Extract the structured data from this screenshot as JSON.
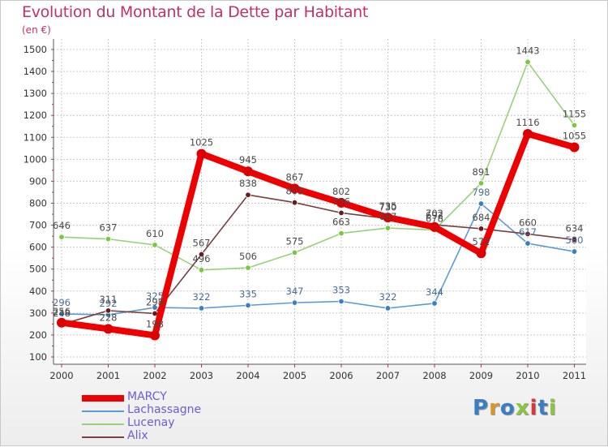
{
  "title": "Evolution du Montant de la Dette par Habitant",
  "subtitle": "(en €)",
  "logo": {
    "text": "Proxiti",
    "colors": [
      "#3a7fc4",
      "#d9962a",
      "#3a7fc4",
      "#8cc63f",
      "#d33a3a",
      "#3a7fc4",
      "#8cc63f"
    ]
  },
  "chart_data": {
    "type": "line",
    "categories": [
      "2000",
      "2001",
      "2002",
      "2003",
      "2004",
      "2005",
      "2006",
      "2007",
      "2008",
      "2009",
      "2010",
      "2011"
    ],
    "ylim": [
      100,
      1500
    ],
    "yticks": [
      "100",
      "200",
      "300",
      "400",
      "500",
      "600",
      "700",
      "800",
      "900",
      "1000",
      "1100",
      "1200",
      "1300",
      "1400",
      "1500"
    ],
    "grid": true,
    "legend_position": "bottom-left",
    "series": [
      {
        "name": "Lachassagne",
        "color": "#5b9bd5",
        "marker": "#3c7fc0",
        "labelColor": "#4a6c9a",
        "values": [
          296,
          292,
          325,
          322,
          335,
          347,
          353,
          322,
          344,
          798,
          617,
          580
        ],
        "labels": [
          "296",
          "292",
          "325",
          "322",
          "335",
          "347",
          "353",
          "322",
          "344",
          "798",
          "617",
          "580"
        ]
      },
      {
        "name": "Lucenay",
        "color": "#99d17a",
        "marker": "#7cc742",
        "labelColor": "#4a4a4a",
        "values": [
          646,
          637,
          610,
          496,
          506,
          575,
          663,
          687,
          678,
          891,
          1443,
          1155
        ],
        "labels": [
          "646",
          "637",
          "610",
          "496",
          "506",
          "575",
          "663",
          "687",
          "678",
          "891",
          "1443",
          "1155"
        ]
      },
      {
        "name": "Alix",
        "color": "#7a3f3f",
        "marker": "#6a1a1a",
        "labelColor": "#4a4a4a",
        "values": [
          248,
          311,
          298,
          567,
          838,
          803,
          756,
          730,
          702,
          684,
          660,
          634
        ],
        "labels": [
          "248",
          "311",
          "298",
          "567",
          "838",
          "803",
          "756",
          "730",
          "702",
          "684",
          "660",
          "634"
        ]
      },
      {
        "name": "MARCY",
        "color": "#ee0000",
        "marker": "#dd0000",
        "labelColor": "#4a4a4a",
        "values": [
          256,
          228,
          198,
          1025,
          945,
          867,
          802,
          735,
          692,
          572,
          1116,
          1055
        ],
        "labels": [
          "256",
          "228",
          "198",
          "1025",
          "945",
          "867",
          "802",
          "735",
          "692",
          "572",
          "1116",
          "1055"
        ]
      }
    ]
  },
  "legend": [
    {
      "name": "MARCY",
      "color": "#ee0000",
      "textColor": "#6f5bd5"
    },
    {
      "name": "Lachassagne",
      "color": "#5b9bd5",
      "textColor": "#6f5bd5"
    },
    {
      "name": "Lucenay",
      "color": "#99d17a",
      "textColor": "#6f5bd5"
    },
    {
      "name": "Alix",
      "color": "#7a3f3f",
      "textColor": "#6f5bd5"
    }
  ]
}
